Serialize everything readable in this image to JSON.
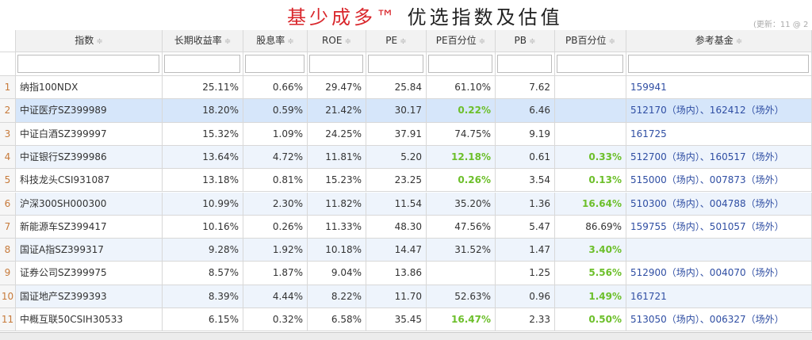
{
  "header": {
    "title_brand": "基少成多™",
    "title_rest": "优选指数及估值",
    "update_note": "(更新：11 @ 2"
  },
  "table": {
    "columns": [
      "指数",
      "长期收益率",
      "股息率",
      "ROE",
      "PE",
      "PE百分位",
      "PB",
      "PB百分位",
      "参考基金"
    ],
    "highlight_color": "#6cbf2a",
    "rows": [
      {
        "index": 1,
        "cells": [
          "纳指100NDX",
          "25.11%",
          "0.66%",
          "29.47%",
          "25.84",
          "61.10%",
          "7.62",
          "",
          "159941"
        ],
        "green_columns": []
      },
      {
        "index": 2,
        "cells": [
          "中证医疗SZ399989",
          "18.20%",
          "0.59%",
          "21.42%",
          "30.17",
          "0.22%",
          "6.46",
          "",
          "512170（场内）、162412（场外）"
        ],
        "green_columns": [
          5
        ]
      },
      {
        "index": 3,
        "cells": [
          "中证白酒SZ399997",
          "15.32%",
          "1.09%",
          "24.25%",
          "37.91",
          "74.75%",
          "9.19",
          "",
          "161725"
        ],
        "green_columns": []
      },
      {
        "index": 4,
        "cells": [
          "中证银行SZ399986",
          "13.64%",
          "4.72%",
          "11.81%",
          "5.20",
          "12.18%",
          "0.61",
          "0.33%",
          "512700（场内）、160517（场外）"
        ],
        "green_columns": [
          5,
          7
        ]
      },
      {
        "index": 5,
        "cells": [
          "科技龙头CSI931087",
          "13.18%",
          "0.81%",
          "15.23%",
          "23.25",
          "0.26%",
          "3.54",
          "0.13%",
          "515000（场内）、007873（场外）"
        ],
        "green_columns": [
          5,
          7
        ]
      },
      {
        "index": 6,
        "cells": [
          "沪深300SH000300",
          "10.99%",
          "2.30%",
          "11.82%",
          "11.54",
          "35.20%",
          "1.36",
          "16.64%",
          "510300（场内）、004788（场外）"
        ],
        "green_columns": [
          7
        ]
      },
      {
        "index": 7,
        "cells": [
          "新能源车SZ399417",
          "10.16%",
          "0.26%",
          "11.33%",
          "48.30",
          "47.56%",
          "5.47",
          "86.69%",
          "159755（场内）、501057（场外）"
        ],
        "green_columns": []
      },
      {
        "index": 8,
        "cells": [
          "国证A指SZ399317",
          "9.28%",
          "1.92%",
          "10.18%",
          "14.47",
          "31.52%",
          "1.47",
          "3.40%",
          ""
        ],
        "green_columns": [
          7
        ]
      },
      {
        "index": 9,
        "cells": [
          "证券公司SZ399975",
          "8.57%",
          "1.87%",
          "9.04%",
          "13.86",
          "",
          "1.25",
          "5.56%",
          "512900（场内）、004070（场外）"
        ],
        "green_columns": [
          7
        ]
      },
      {
        "index": 10,
        "cells": [
          "国证地产SZ399393",
          "8.39%",
          "4.44%",
          "8.22%",
          "11.70",
          "52.63%",
          "0.96",
          "1.49%",
          "161721"
        ],
        "green_columns": [
          7
        ]
      },
      {
        "index": 11,
        "cells": [
          "中概互联50CSIH30533",
          "6.15%",
          "0.32%",
          "6.58%",
          "35.45",
          "16.47%",
          "2.33",
          "0.50%",
          "513050（场内）、006327（场外）"
        ],
        "green_columns": [
          5,
          7
        ]
      }
    ]
  }
}
